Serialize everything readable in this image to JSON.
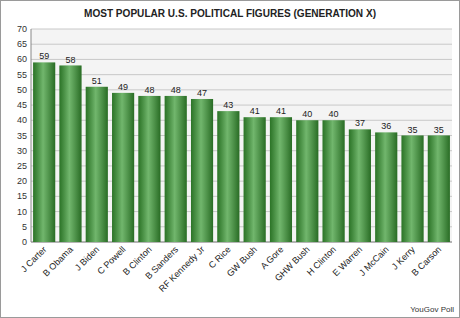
{
  "chart_data": {
    "type": "bar",
    "title": "MOST POPULAR U.S. POLITICAL FIGURES (GENERATION X)",
    "categories": [
      "J Carter",
      "B Obama",
      "J Biden",
      "C Powell",
      "B Clinton",
      "B Sanders",
      "RF Kennedy Jr",
      "C Rice",
      "GW Bush",
      "A Gore",
      "GHW Bush",
      "H Clinton",
      "E Warren",
      "J McCain",
      "J Kerry",
      "B Carson"
    ],
    "values": [
      59,
      58,
      51,
      49,
      48,
      48,
      47,
      43,
      41,
      41,
      40,
      40,
      37,
      36,
      35,
      35
    ],
    "color": "#3a9a34",
    "ylim": [
      0,
      70
    ],
    "yticks": [
      0,
      5,
      10,
      15,
      20,
      25,
      30,
      35,
      40,
      45,
      50,
      55,
      60,
      65,
      70
    ],
    "grid": true,
    "data_labels": true,
    "annotations": [
      "YouGov Poll"
    ]
  }
}
